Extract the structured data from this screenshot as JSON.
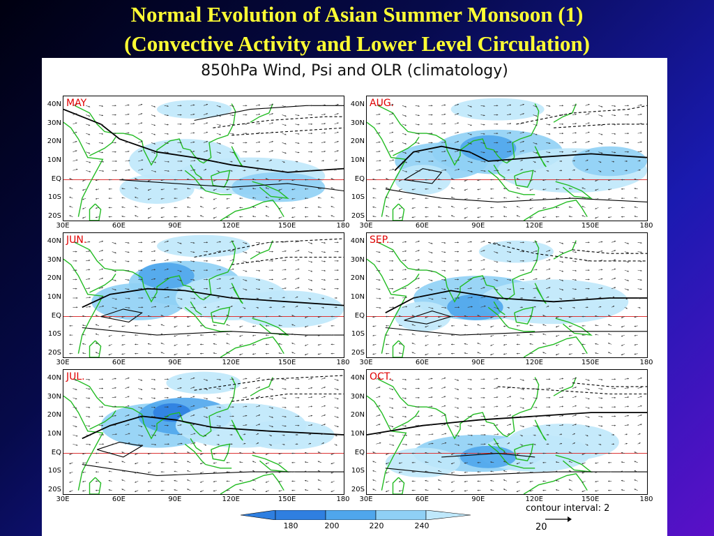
{
  "slide": {
    "title_line1": "Normal Evolution of Asian Summer Monsoon (1)",
    "title_line2": "(Convective Activity and Lower Level Circulation)"
  },
  "figure": {
    "title": "850hPa Wind, Psi and OLR (climatology)",
    "panels": [
      {
        "label": "MAY"
      },
      {
        "label": "AUG."
      },
      {
        "label": "JUN."
      },
      {
        "label": "SEP."
      },
      {
        "label": "JUL."
      },
      {
        "label": "OCT."
      }
    ],
    "lat_ticks": [
      "40N",
      "30N",
      "20N",
      "10N",
      "EQ",
      "10S",
      "20S"
    ],
    "lon_ticks": [
      "30E",
      "60E",
      "90E",
      "120E",
      "150E",
      "180"
    ],
    "colors": {
      "coastline": "#22bb22",
      "equator": "#dd3333",
      "shade_light": "#bfe8fb",
      "shade_mid": "#8fd0f5",
      "shade_dark": "#4fa6ec",
      "shade_darkest": "#2f7fe0",
      "contour": "#000000",
      "vector": "#333333"
    },
    "legend": {
      "labels": [
        "180",
        "200",
        "220",
        "240"
      ],
      "contour_interval": "contour interval: 2",
      "reference_vector": "20"
    }
  }
}
